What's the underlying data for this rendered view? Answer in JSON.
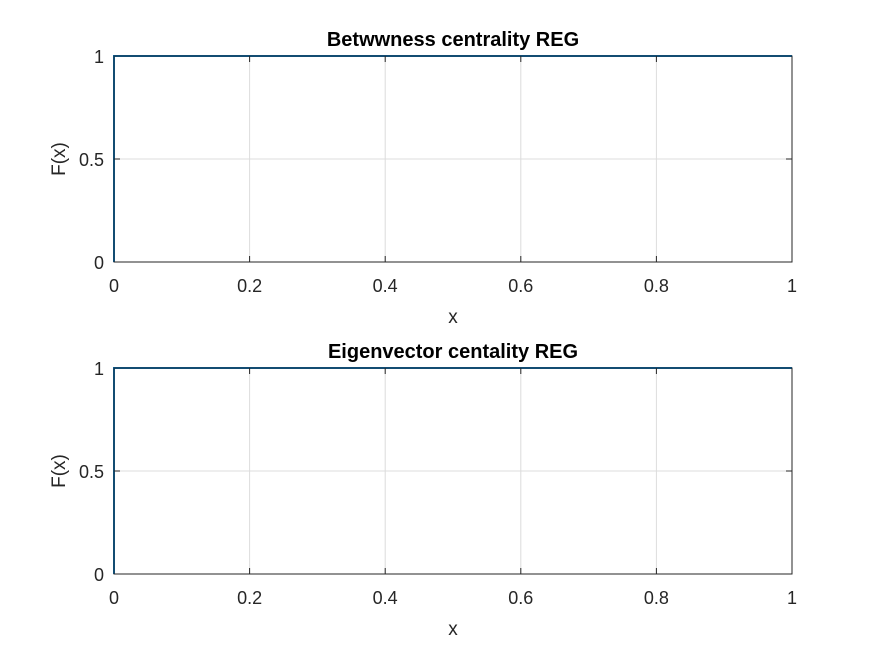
{
  "figure": {
    "background": "#ffffff"
  },
  "chart_data": [
    {
      "type": "line",
      "title": "Betwwness centrality REG",
      "xlabel": "x",
      "ylabel": "F(x)",
      "xlim": [
        0,
        1
      ],
      "ylim": [
        0,
        1
      ],
      "xticks": [
        0,
        0.2,
        0.4,
        0.6,
        0.8,
        1
      ],
      "xtick_labels": [
        "0",
        "0.2",
        "0.4",
        "0.6",
        "0.8",
        "1"
      ],
      "yticks": [
        0,
        0.5,
        1
      ],
      "ytick_labels": [
        "0",
        "0.5",
        "1"
      ],
      "grid": true,
      "series": [
        {
          "x": [
            0,
            0,
            1
          ],
          "y": [
            0,
            1,
            1
          ],
          "color": "#0072bd"
        }
      ]
    },
    {
      "type": "line",
      "title": "Eigenvector centality REG",
      "xlabel": "x",
      "ylabel": "F(x)",
      "xlim": [
        0,
        1
      ],
      "ylim": [
        0,
        1
      ],
      "xticks": [
        0,
        0.2,
        0.4,
        0.6,
        0.8,
        1
      ],
      "xtick_labels": [
        "0",
        "0.2",
        "0.4",
        "0.6",
        "0.8",
        "1"
      ],
      "yticks": [
        0,
        0.5,
        1
      ],
      "ytick_labels": [
        "0",
        "0.5",
        "1"
      ],
      "grid": true,
      "series": [
        {
          "x": [
            0,
            0,
            1
          ],
          "y": [
            0,
            1,
            1
          ],
          "color": "#0072bd"
        }
      ]
    }
  ]
}
